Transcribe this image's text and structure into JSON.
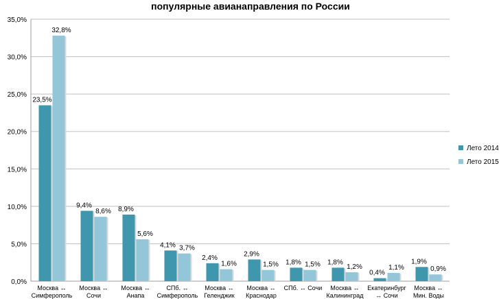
{
  "chart_data": {
    "type": "bar",
    "title": "популярные авианаправления по России",
    "xlabel": "",
    "ylabel": "",
    "ylim": [
      0,
      35
    ],
    "yticks": [
      {
        "value": 0,
        "label": "0,0%"
      },
      {
        "value": 5,
        "label": "5,0%"
      },
      {
        "value": 10,
        "label": "10,0%"
      },
      {
        "value": 15,
        "label": "15,0%"
      },
      {
        "value": 20,
        "label": "20,0%"
      },
      {
        "value": 25,
        "label": "25,0%"
      },
      {
        "value": 30,
        "label": "30,0%"
      },
      {
        "value": 35,
        "label": "35,0%"
      }
    ],
    "grid": true,
    "legend_position": "right",
    "categories": [
      [
        "Москва ↔",
        "Симферополь"
      ],
      [
        "Москва ↔",
        "Сочи"
      ],
      [
        "Москва ↔",
        "Анапа"
      ],
      [
        "СПб. ↔",
        "Симферополь"
      ],
      [
        "Москва ↔",
        "Геленджик"
      ],
      [
        "Москва ↔",
        "Краснодар"
      ],
      [
        "СПб. ↔ Сочи"
      ],
      [
        "Москва ↔",
        "Калининград"
      ],
      [
        "Екатеринбург",
        "↔ Сочи"
      ],
      [
        "Москва ↔",
        "Мин. Воды"
      ]
    ],
    "series": [
      {
        "name": "Лето 2014",
        "color": "#3f97ad",
        "values": [
          23.5,
          9.4,
          8.9,
          4.1,
          2.4,
          2.9,
          1.8,
          1.8,
          0.4,
          1.9
        ],
        "labels": [
          "23,5%",
          "9,4%",
          "8,9%",
          "4,1%",
          "2,4%",
          "2,9%",
          "1,8%",
          "1,8%",
          "0,4%",
          "1,9%"
        ]
      },
      {
        "name": "Лето 2015",
        "color": "#93c6d8",
        "values": [
          32.8,
          8.6,
          5.6,
          3.7,
          1.6,
          1.5,
          1.5,
          1.2,
          1.1,
          0.9
        ],
        "labels": [
          "32,8%",
          "8,6%",
          "5,6%",
          "3,7%",
          "1,6%",
          "1,5%",
          "1,5%",
          "1,2%",
          "1,1%",
          "0,9%"
        ]
      }
    ]
  }
}
